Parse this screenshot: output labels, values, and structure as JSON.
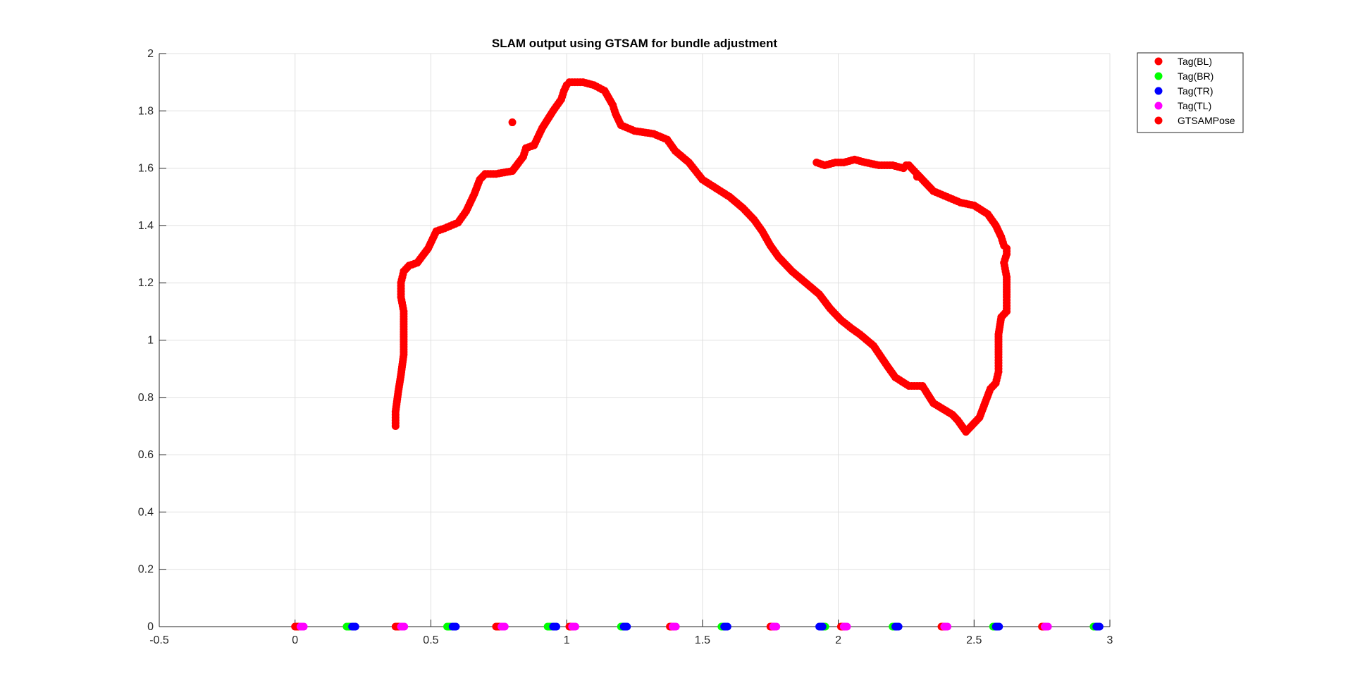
{
  "chart_data": {
    "type": "scatter",
    "title": "SLAM output using GTSAM for bundle adjustment",
    "xlabel": "",
    "ylabel": "",
    "xlim": [
      -0.5,
      3
    ],
    "ylim": [
      0,
      2
    ],
    "xticks": [
      -0.5,
      0,
      0.5,
      1,
      1.5,
      2,
      2.5,
      3
    ],
    "yticks": [
      0,
      0.2,
      0.4,
      0.6,
      0.8,
      1,
      1.2,
      1.4,
      1.6,
      1.8,
      2
    ],
    "xtick_labels": [
      "-0.5",
      "0",
      "0.5",
      "1",
      "1.5",
      "2",
      "2.5",
      "3"
    ],
    "ytick_labels": [
      "0",
      "0.2",
      "0.4",
      "0.6",
      "0.8",
      "1",
      "1.2",
      "1.4",
      "1.6",
      "1.8",
      "2"
    ],
    "grid": true,
    "legend_position": "outside-top-right",
    "series": [
      {
        "name": "Tag(BL)",
        "color": "#ff0000",
        "x": [
          0.0,
          0.37,
          0.74,
          1.01,
          1.38,
          1.75,
          2.01,
          2.38,
          2.75
        ],
        "y": [
          0,
          0,
          0,
          0,
          0,
          0,
          0,
          0,
          0
        ]
      },
      {
        "name": "Tag(BR)",
        "color": "#00ff00",
        "x": [
          0.19,
          0.56,
          0.93,
          1.2,
          1.57,
          1.94,
          2.2,
          2.57,
          2.94
        ],
        "y": [
          0,
          0,
          0,
          0,
          0,
          0,
          0,
          0,
          0
        ]
      },
      {
        "name": "Tag(TR)",
        "color": "#0000ff",
        "x": [
          0.21,
          0.58,
          0.95,
          1.21,
          1.58,
          1.93,
          2.21,
          2.58,
          2.95
        ],
        "y": [
          0,
          0,
          0,
          0,
          0,
          0,
          0,
          0,
          0
        ]
      },
      {
        "name": "Tag(TL)",
        "color": "#ff00ff",
        "x": [
          0.02,
          0.39,
          0.76,
          1.02,
          1.39,
          1.76,
          2.02,
          2.39,
          2.76
        ],
        "y": [
          0,
          0,
          0,
          0,
          0,
          0,
          0,
          0,
          0
        ]
      },
      {
        "name": "GTSAMPose",
        "color": "#ff0000",
        "x": [
          0.37,
          0.37,
          0.38,
          0.39,
          0.4,
          0.4,
          0.4,
          0.39,
          0.39,
          0.4,
          0.42,
          0.45,
          0.49,
          0.52,
          0.55,
          0.6,
          0.63,
          0.66,
          0.68,
          0.7,
          0.72,
          0.74,
          0.8,
          0.84,
          0.85,
          0.88,
          0.91,
          0.95,
          0.98,
          0.99,
          1.0,
          1.01,
          1.03,
          1.06,
          1.1,
          1.14,
          1.17,
          1.18,
          1.2,
          1.25,
          1.32,
          1.37,
          1.4,
          1.45,
          1.5,
          1.55,
          1.6,
          1.65,
          1.69,
          1.72,
          1.75,
          1.78,
          1.83,
          1.88,
          1.93,
          1.97,
          2.01,
          2.05,
          2.08,
          2.13,
          2.18,
          2.21,
          2.26,
          2.31,
          2.35,
          2.42,
          2.44,
          2.47,
          2.52,
          2.56,
          2.58,
          2.59,
          2.59,
          2.59,
          2.6,
          2.62,
          2.62,
          2.62,
          2.61,
          2.62,
          2.62,
          2.61,
          2.6,
          2.58,
          2.55,
          2.5,
          2.45,
          2.4,
          2.35,
          2.31,
          2.28,
          2.26,
          2.25,
          2.24,
          2.2,
          2.15,
          2.1,
          2.06,
          2.02,
          1.99,
          1.95,
          1.92,
          0.8,
          2.29
        ],
        "y": [
          0.7,
          0.75,
          0.82,
          0.88,
          0.95,
          1.02,
          1.1,
          1.15,
          1.2,
          1.24,
          1.26,
          1.27,
          1.32,
          1.38,
          1.39,
          1.41,
          1.45,
          1.51,
          1.56,
          1.58,
          1.58,
          1.58,
          1.59,
          1.64,
          1.67,
          1.68,
          1.74,
          1.8,
          1.84,
          1.87,
          1.89,
          1.9,
          1.9,
          1.9,
          1.89,
          1.87,
          1.82,
          1.79,
          1.75,
          1.73,
          1.72,
          1.7,
          1.66,
          1.62,
          1.56,
          1.53,
          1.5,
          1.46,
          1.42,
          1.38,
          1.33,
          1.29,
          1.24,
          1.2,
          1.16,
          1.11,
          1.07,
          1.04,
          1.02,
          0.98,
          0.91,
          0.87,
          0.84,
          0.84,
          0.78,
          0.74,
          0.72,
          0.68,
          0.73,
          0.83,
          0.85,
          0.89,
          0.95,
          1.02,
          1.08,
          1.1,
          1.15,
          1.22,
          1.27,
          1.3,
          1.32,
          1.33,
          1.36,
          1.4,
          1.44,
          1.47,
          1.48,
          1.5,
          1.52,
          1.56,
          1.59,
          1.61,
          1.61,
          1.6,
          1.61,
          1.61,
          1.62,
          1.63,
          1.62,
          1.62,
          1.61,
          1.62,
          1.76,
          1.57
        ]
      }
    ]
  }
}
